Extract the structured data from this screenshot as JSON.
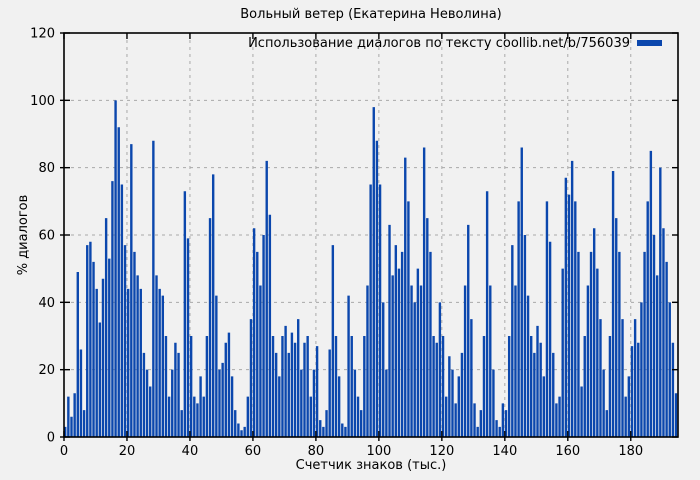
{
  "colors": {
    "bar": "#0b47ad",
    "background": "#f1f1f1",
    "grid": "#a9a9a9",
    "border": "#000000",
    "text": "#000000"
  },
  "chart_data": {
    "type": "bar",
    "title": "Вольный ветер (Екатерина Неволина)",
    "legend": "Использование диалогов по тексту coollib.net/b/756039",
    "legend_position": "top-right-inside",
    "xlabel": "Счетчик знаков (тыс.)",
    "ylabel": "% диалогов",
    "xlim": [
      0,
      195
    ],
    "ylim": [
      0,
      120
    ],
    "x_ticks": [
      0,
      20,
      40,
      60,
      80,
      100,
      120,
      140,
      160,
      180
    ],
    "y_ticks": [
      0,
      20,
      40,
      60,
      80,
      100,
      120
    ],
    "grid": true,
    "x_step": 1,
    "values": [
      3,
      12,
      6,
      13,
      49,
      26,
      8,
      57,
      58,
      52,
      44,
      34,
      47,
      65,
      53,
      76,
      100,
      92,
      75,
      57,
      44,
      87,
      55,
      48,
      44,
      25,
      20,
      15,
      88,
      48,
      44,
      42,
      30,
      12,
      20,
      28,
      25,
      8,
      73,
      59,
      30,
      12,
      10,
      18,
      12,
      30,
      65,
      78,
      42,
      20,
      22,
      28,
      31,
      18,
      8,
      4,
      2,
      3,
      12,
      35,
      62,
      55,
      45,
      60,
      82,
      66,
      30,
      25,
      18,
      30,
      33,
      25,
      31,
      28,
      35,
      20,
      28,
      30,
      12,
      20,
      27,
      5,
      3,
      8,
      26,
      57,
      30,
      18,
      4,
      3,
      42,
      30,
      20,
      12,
      8,
      30,
      45,
      75,
      98,
      88,
      75,
      40,
      20,
      63,
      48,
      57,
      50,
      55,
      83,
      70,
      45,
      40,
      50,
      45,
      86,
      65,
      55,
      30,
      28,
      40,
      30,
      12,
      24,
      20,
      10,
      18,
      25,
      45,
      63,
      35,
      10,
      3,
      8,
      30,
      73,
      45,
      20,
      5,
      3,
      10,
      8,
      30,
      57,
      45,
      70,
      86,
      60,
      42,
      30,
      25,
      33,
      28,
      18,
      70,
      58,
      25,
      10,
      12,
      50,
      77,
      72,
      82,
      70,
      55,
      15,
      30,
      45,
      55,
      62,
      50,
      35,
      20,
      8,
      30,
      79,
      65,
      55,
      35,
      12,
      18,
      27,
      35,
      28,
      40,
      55,
      70,
      85,
      60,
      48,
      80,
      62,
      52,
      40,
      28,
      13
    ]
  }
}
